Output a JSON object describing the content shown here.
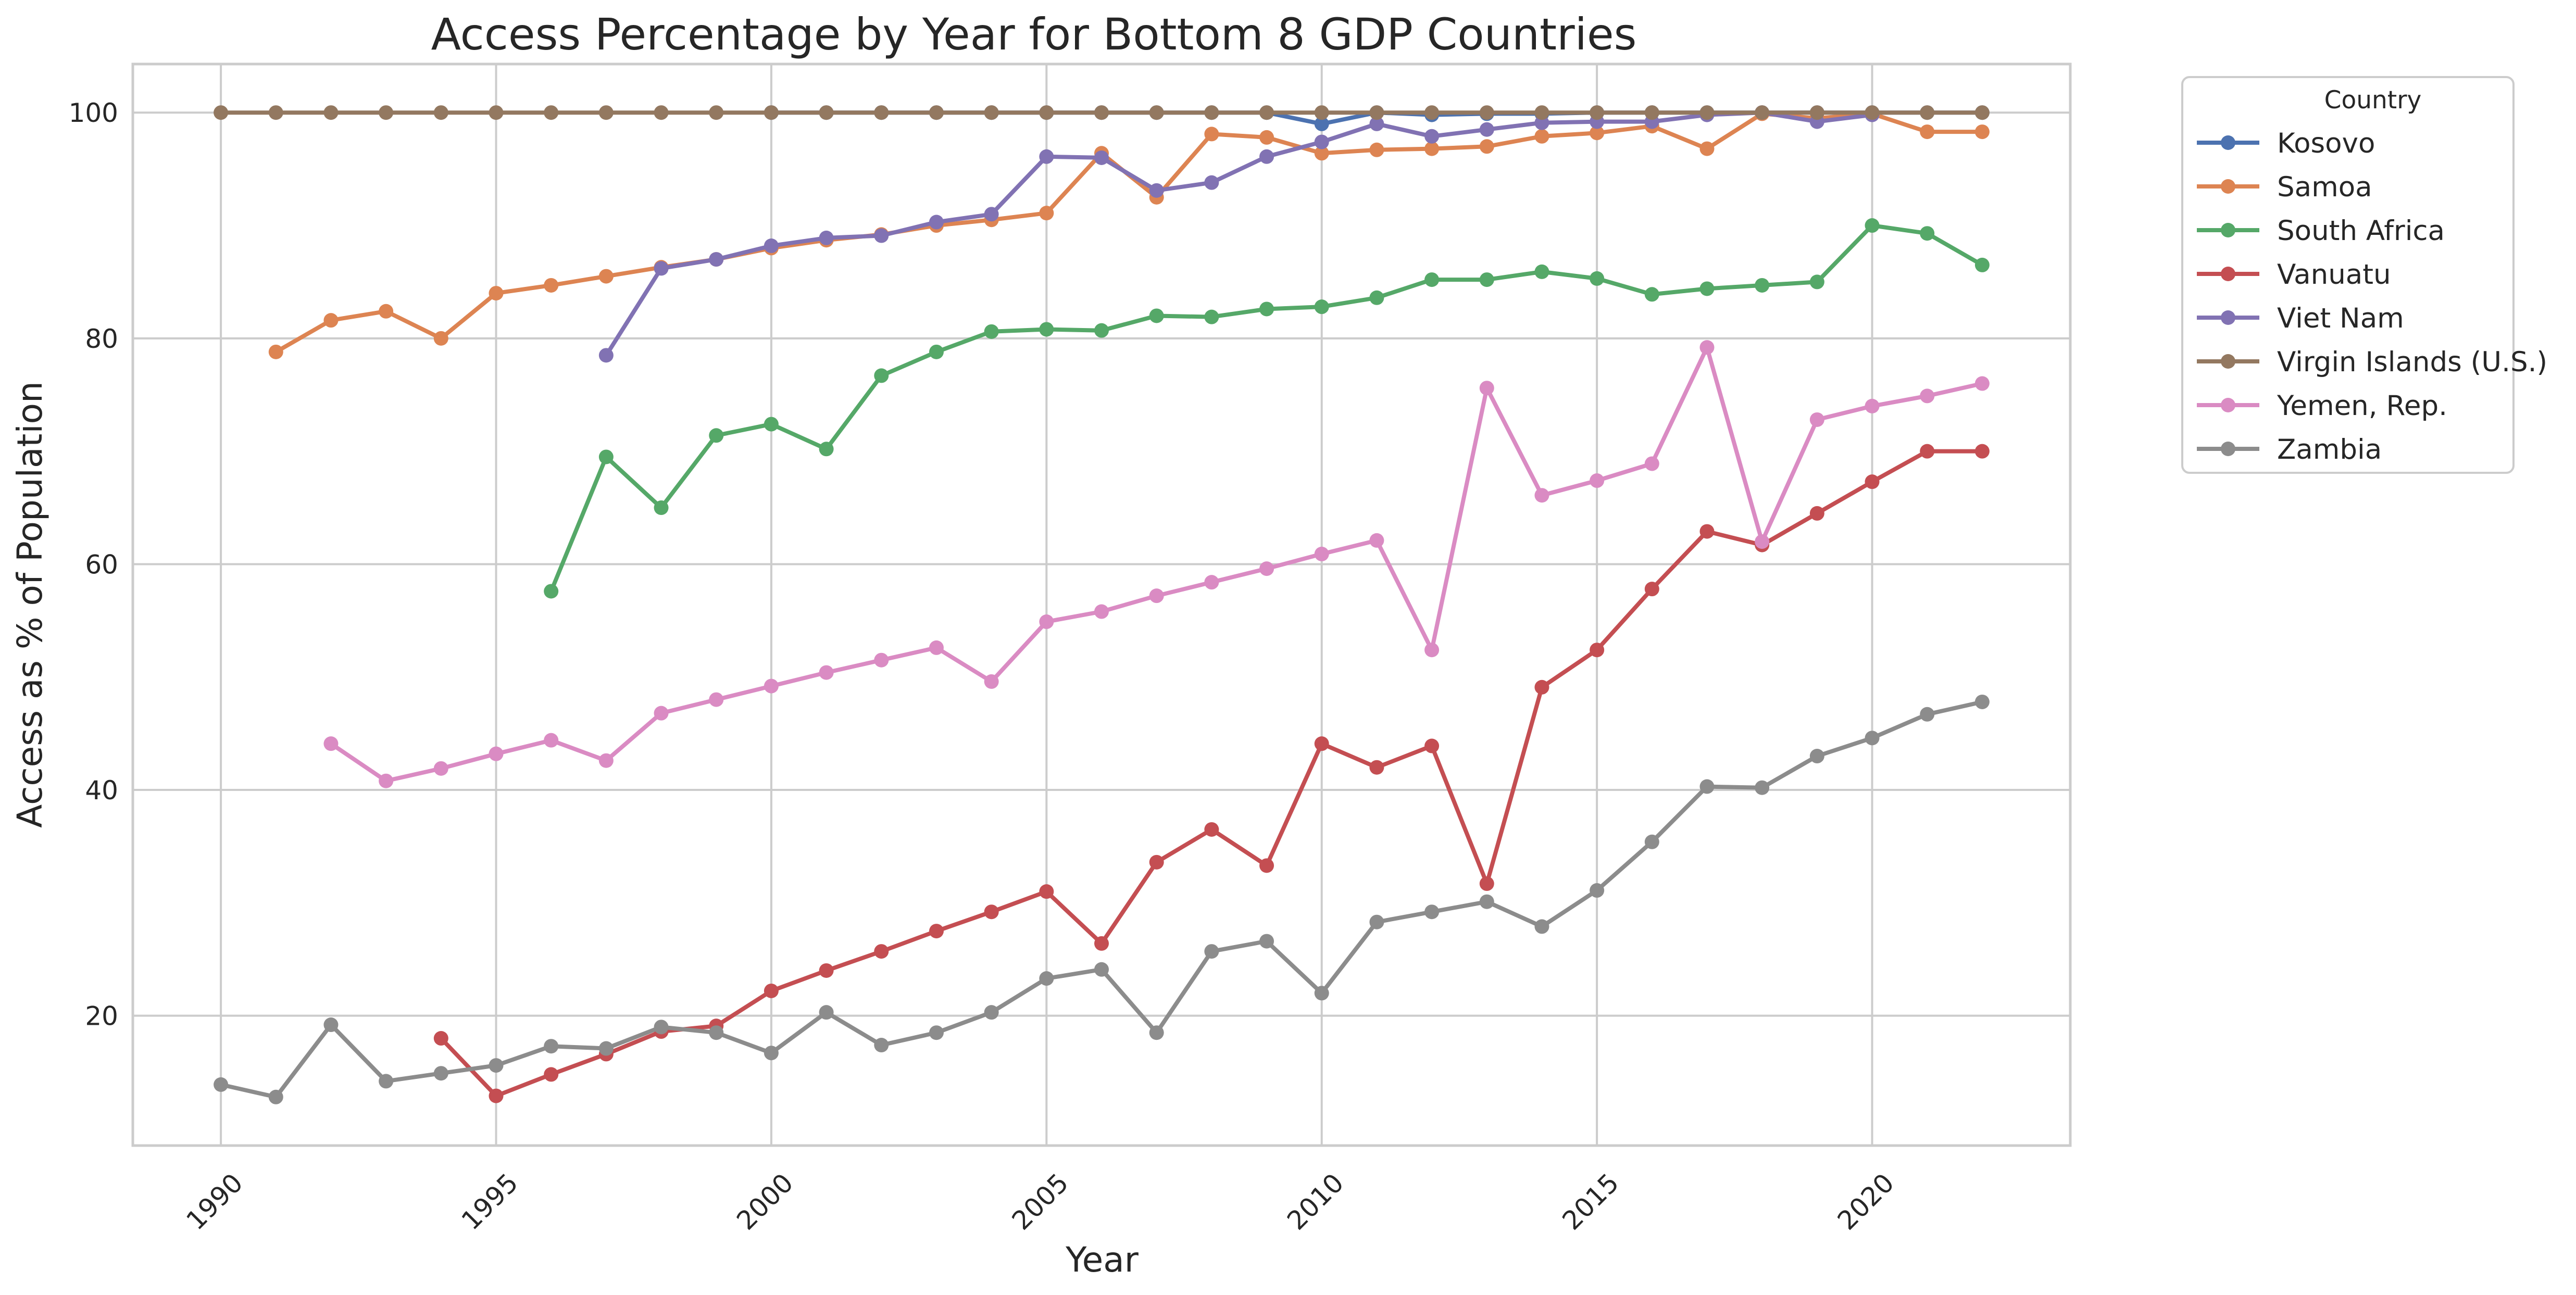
{
  "colors": {
    "Kosovo": "#4c72b0",
    "Samoa": "#dd8452",
    "South Africa": "#55a868",
    "Vanuatu": "#c44e52",
    "Viet Nam": "#8172b3",
    "Virgin Islands (U.S.)": "#937860",
    "Yemen, Rep.": "#da8bc3",
    "Zambia": "#8c8c8c"
  },
  "chart_data": {
    "type": "line",
    "title": "Access Percentage by Year for Bottom 8 GDP Countries",
    "xlabel": "Year",
    "ylabel": "Access as % of Population",
    "xlim": [
      1988.4,
      2023.6
    ],
    "ylim": [
      8.5,
      104.3
    ],
    "xticks": [
      1990,
      1995,
      2000,
      2005,
      2010,
      2015,
      2020
    ],
    "yticks": [
      20,
      40,
      60,
      80,
      100
    ],
    "grid": true,
    "legend": {
      "title": "Country",
      "placement": "outside-top-right"
    },
    "series": [
      {
        "name": "Kosovo",
        "x": [
          2000,
          2001,
          2002,
          2003,
          2004,
          2005,
          2006,
          2007,
          2008,
          2009,
          2010,
          2011,
          2012,
          2013,
          2014,
          2015,
          2016,
          2017,
          2018,
          2019,
          2020,
          2021,
          2022
        ],
        "values": [
          100,
          100,
          100,
          100,
          100,
          100,
          100,
          100,
          100,
          100,
          99.0,
          100,
          99.8,
          99.9,
          99.9,
          100,
          100,
          100,
          100,
          100,
          100,
          100,
          100
        ]
      },
      {
        "name": "Samoa",
        "x": [
          1991,
          1992,
          1993,
          1994,
          1995,
          1996,
          1997,
          1998,
          1999,
          2000,
          2001,
          2002,
          2003,
          2004,
          2005,
          2006,
          2007,
          2008,
          2009,
          2010,
          2011,
          2012,
          2013,
          2014,
          2015,
          2016,
          2017,
          2018,
          2019,
          2020,
          2021,
          2022
        ],
        "values": [
          78.8,
          81.6,
          82.4,
          80.0,
          84.0,
          84.7,
          85.5,
          86.3,
          87.0,
          88.0,
          88.7,
          89.2,
          90.0,
          90.5,
          91.1,
          96.4,
          92.5,
          98.1,
          97.8,
          96.4,
          96.7,
          96.8,
          97.0,
          97.9,
          98.2,
          98.8,
          96.8,
          99.9,
          99.5,
          99.9,
          98.3,
          98.3
        ]
      },
      {
        "name": "South Africa",
        "x": [
          1996,
          1997,
          1998,
          1999,
          2000,
          2001,
          2002,
          2003,
          2004,
          2005,
          2006,
          2007,
          2008,
          2009,
          2010,
          2011,
          2012,
          2013,
          2014,
          2015,
          2016,
          2017,
          2018,
          2019,
          2020,
          2021,
          2022
        ],
        "values": [
          57.6,
          69.5,
          65.0,
          71.4,
          72.4,
          70.2,
          76.7,
          78.8,
          80.6,
          80.8,
          80.7,
          82.0,
          81.9,
          82.6,
          82.8,
          83.6,
          85.2,
          85.2,
          85.9,
          85.3,
          83.9,
          84.4,
          84.7,
          85.0,
          90.0,
          89.3,
          86.5
        ]
      },
      {
        "name": "Vanuatu",
        "x": [
          1994,
          1995,
          1996,
          1997,
          1998,
          1999,
          2000,
          2001,
          2002,
          2003,
          2004,
          2005,
          2006,
          2007,
          2008,
          2009,
          2010,
          2011,
          2012,
          2013,
          2014,
          2015,
          2016,
          2017,
          2018,
          2019,
          2020,
          2021,
          2022
        ],
        "values": [
          18.0,
          12.9,
          14.8,
          16.6,
          18.6,
          19.1,
          22.2,
          24.0,
          25.7,
          27.5,
          29.2,
          31.0,
          26.4,
          33.6,
          36.5,
          33.3,
          44.1,
          42.0,
          43.9,
          31.7,
          49.1,
          52.4,
          57.8,
          62.9,
          61.7,
          64.5,
          67.3,
          70.0,
          70.0
        ]
      },
      {
        "name": "Viet Nam",
        "x": [
          1997,
          1998,
          1999,
          2000,
          2001,
          2002,
          2003,
          2004,
          2005,
          2006,
          2007,
          2008,
          2009,
          2010,
          2011,
          2012,
          2013,
          2014,
          2015,
          2016,
          2017,
          2018,
          2019,
          2020
        ],
        "values": [
          78.5,
          86.2,
          87.0,
          88.2,
          88.9,
          89.1,
          90.3,
          91.0,
          96.1,
          96.0,
          93.1,
          93.8,
          96.1,
          97.4,
          99.0,
          97.9,
          98.5,
          99.1,
          99.2,
          99.2,
          99.8,
          100,
          99.2,
          99.8
        ]
      },
      {
        "name": "Virgin Islands (U.S.)",
        "x": [
          1990,
          1991,
          1992,
          1993,
          1994,
          1995,
          1996,
          1997,
          1998,
          1999,
          2000,
          2001,
          2002,
          2003,
          2004,
          2005,
          2006,
          2007,
          2008,
          2009,
          2010,
          2011,
          2012,
          2013,
          2014,
          2015,
          2016,
          2017,
          2018,
          2019,
          2020,
          2021,
          2022
        ],
        "values": [
          100,
          100,
          100,
          100,
          100,
          100,
          100,
          100,
          100,
          100,
          100,
          100,
          100,
          100,
          100,
          100,
          100,
          100,
          100,
          100,
          100,
          100,
          100,
          100,
          100,
          100,
          100,
          100,
          100,
          100,
          100,
          100,
          100
        ]
      },
      {
        "name": "Yemen, Rep.",
        "x": [
          1992,
          1993,
          1994,
          1995,
          1996,
          1997,
          1998,
          1999,
          2000,
          2001,
          2002,
          2003,
          2004,
          2005,
          2006,
          2007,
          2008,
          2009,
          2010,
          2011,
          2012,
          2013,
          2014,
          2015,
          2016,
          2017,
          2018,
          2019,
          2020,
          2021,
          2022
        ],
        "values": [
          44.1,
          40.8,
          41.9,
          43.2,
          44.4,
          42.6,
          46.8,
          48.0,
          49.2,
          50.4,
          51.5,
          52.6,
          49.6,
          54.9,
          55.8,
          57.2,
          58.4,
          59.6,
          60.9,
          62.1,
          52.4,
          75.6,
          66.1,
          67.4,
          68.9,
          79.2,
          62.0,
          72.8,
          74.0,
          74.9,
          76.0
        ]
      },
      {
        "name": "Zambia",
        "x": [
          1990,
          1991,
          1992,
          1993,
          1994,
          1995,
          1996,
          1997,
          1998,
          1999,
          2000,
          2001,
          2002,
          2003,
          2004,
          2005,
          2006,
          2007,
          2008,
          2009,
          2010,
          2011,
          2012,
          2013,
          2014,
          2015,
          2016,
          2017,
          2018,
          2019,
          2020,
          2021,
          2022
        ],
        "values": [
          13.9,
          12.8,
          19.2,
          14.2,
          14.9,
          15.6,
          17.3,
          17.1,
          19.0,
          18.5,
          16.7,
          20.3,
          17.4,
          18.5,
          20.3,
          23.3,
          24.1,
          18.5,
          25.7,
          26.6,
          22.0,
          28.3,
          29.2,
          30.1,
          27.9,
          31.1,
          35.4,
          40.3,
          40.2,
          43.0,
          44.6,
          46.7,
          47.8
        ]
      }
    ]
  }
}
